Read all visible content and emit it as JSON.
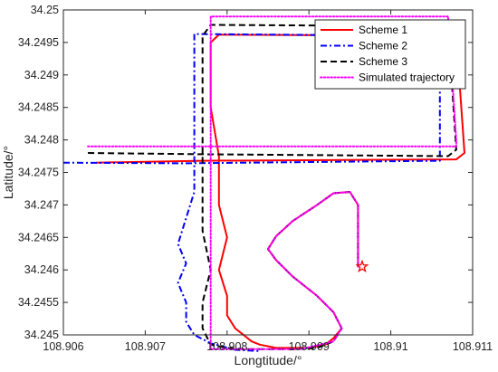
{
  "chart_data": {
    "type": "line",
    "xlabel": "Longtitude/°",
    "ylabel": "Latitude/°",
    "xlim": [
      108.906,
      108.911
    ],
    "ylim": [
      34.245,
      34.25
    ],
    "xticks": [
      "108.906",
      "108.907",
      "108.908",
      "108.909",
      "108.91",
      "108.911"
    ],
    "yticks": [
      "34.245",
      "34.2455",
      "34.246",
      "34.2465",
      "34.247",
      "34.2475",
      "34.248",
      "34.2485",
      "34.249",
      "34.2495",
      "34.25"
    ],
    "legend_position": "top-right",
    "grid": false,
    "series": [
      {
        "name": "Scheme 1",
        "color": "#ff0000",
        "style": "solid",
        "x": [
          108.9064,
          108.9077,
          108.9108,
          108.9109,
          108.9108,
          108.9079,
          108.9078,
          108.9078,
          108.9079,
          108.9079,
          108.9079,
          108.908,
          108.9079,
          108.908,
          108.908,
          108.9081,
          108.9082,
          108.9083,
          108.9084,
          108.9086,
          108.9088,
          108.909,
          108.9092,
          108.9093,
          108.9094,
          108.9093,
          108.9091,
          108.9088,
          108.9086,
          108.9085,
          108.9086,
          108.9088,
          108.9091,
          108.9093,
          108.9095,
          108.9096,
          108.9096
        ],
        "y": [
          34.24765,
          34.24768,
          34.2477,
          34.2478,
          34.2496,
          34.24962,
          34.2495,
          34.2485,
          34.24775,
          34.2473,
          34.247,
          34.2465,
          34.246,
          34.2456,
          34.2453,
          34.2451,
          34.245,
          34.2449,
          34.24485,
          34.2448,
          34.2448,
          34.2448,
          34.24485,
          34.24495,
          34.2451,
          34.24535,
          34.2456,
          34.2459,
          34.24615,
          34.24632,
          34.24652,
          34.24675,
          34.247,
          34.24718,
          34.2472,
          34.247,
          34.24605
        ]
      },
      {
        "name": "Scheme 2",
        "color": "#0000ff",
        "style": "dash-dot",
        "x": [
          108.906,
          108.9075,
          108.9106,
          108.9106,
          108.9106,
          108.9076,
          108.9076,
          108.9076,
          108.9076,
          108.9076,
          108.9075,
          108.9074,
          108.9075,
          108.9074,
          108.9075,
          108.9075,
          108.9076,
          108.9078,
          108.9081,
          108.9084
        ],
        "y": [
          34.24765,
          34.24764,
          34.24768,
          34.2479,
          34.2496,
          34.24963,
          34.2495,
          34.2485,
          34.2477,
          34.2472,
          34.2468,
          34.2464,
          34.2461,
          34.2458,
          34.2455,
          34.2452,
          34.245,
          34.24487,
          34.24477,
          34.24475
        ]
      },
      {
        "name": "Scheme 3",
        "color": "#000000",
        "style": "dashed",
        "x": [
          108.9063,
          108.9077,
          108.9107,
          108.9108,
          108.9107,
          108.9078,
          108.9077,
          108.9077,
          108.9077,
          108.9077,
          108.9077,
          108.9078,
          108.9077,
          108.9077,
          108.9078,
          108.908,
          108.9082,
          108.9085,
          108.9088,
          108.9091,
          108.9093,
          108.9094,
          108.9093,
          108.9091,
          108.9088,
          108.9086,
          108.9085,
          108.9086,
          108.9088,
          108.9091,
          108.9093,
          108.9095,
          108.9096,
          108.9096
        ],
        "y": [
          34.2478,
          34.24778,
          34.24775,
          34.24785,
          34.24975,
          34.24977,
          34.2496,
          34.2486,
          34.2478,
          34.2472,
          34.2466,
          34.246,
          34.2455,
          34.2451,
          34.24485,
          34.2448,
          34.24478,
          34.24478,
          34.24478,
          34.2448,
          34.2449,
          34.2451,
          34.24535,
          34.2456,
          34.2459,
          34.24615,
          34.24632,
          34.24652,
          34.24675,
          34.247,
          34.24718,
          34.2472,
          34.247,
          34.24605
        ]
      },
      {
        "name": "Simulated trajectory",
        "color": "#ff00ff",
        "style": "dotted",
        "x": [
          108.9063,
          108.9078,
          108.9108,
          108.9108,
          108.9107,
          108.9078,
          108.9078,
          108.9078,
          108.9078,
          108.9078,
          108.9081,
          108.9085,
          108.9089,
          108.9093,
          108.9094,
          108.9093,
          108.9091,
          108.9088,
          108.9086,
          108.9085,
          108.9086,
          108.9088,
          108.9091,
          108.9093,
          108.9095,
          108.9096,
          108.9096
        ],
        "y": [
          34.2479,
          34.2479,
          34.2479,
          34.248,
          34.2499,
          34.2499,
          34.2485,
          34.247,
          34.2455,
          34.24478,
          34.24478,
          34.24478,
          34.24478,
          34.2449,
          34.2451,
          34.24535,
          34.2456,
          34.2459,
          34.24615,
          34.24632,
          34.24652,
          34.24675,
          34.247,
          34.24718,
          34.2472,
          34.247,
          34.24605
        ]
      }
    ],
    "markers": [
      {
        "name": "start",
        "shape": "star",
        "color": "#ff0000",
        "x": 108.90965,
        "y": 34.24605
      }
    ]
  }
}
